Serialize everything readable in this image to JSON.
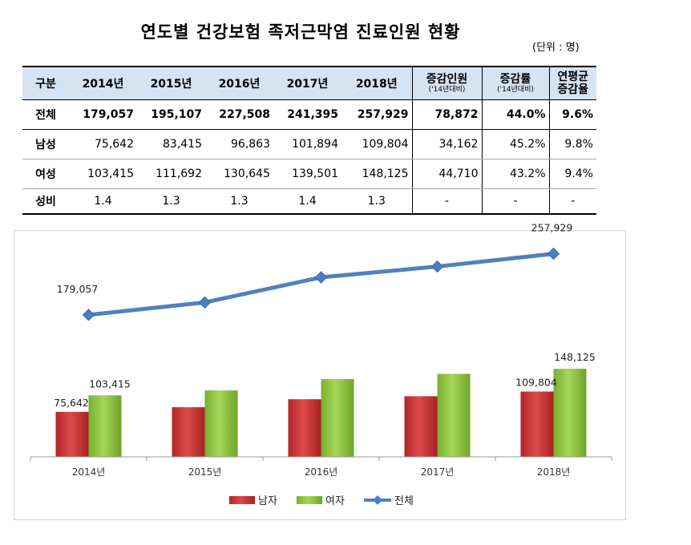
{
  "title": "연도별 건강보험 족저근막염 진료인원 현황",
  "unit": "(단위 : 명)",
  "table": {
    "headers": [
      "구분",
      "2014년",
      "2015년",
      "2016년",
      "2017년",
      "2018년"
    ],
    "extra_headers": [
      {
        "main": "증감인원",
        "sub": "('14년대비)"
      },
      {
        "main": "증감률",
        "sub": "('14년대비)"
      },
      {
        "main": "연평균",
        "sub": "증감율"
      }
    ],
    "rows": [
      {
        "label": "전체",
        "values": [
          "179,057",
          "195,107",
          "227,508",
          "241,395",
          "257,929",
          "78,872",
          "44.0%",
          "9.6%"
        ]
      },
      {
        "label": "남성",
        "values": [
          "75,642",
          "83,415",
          "96,863",
          "101,894",
          "109,804",
          "34,162",
          "45.2%",
          "9.8%"
        ]
      },
      {
        "label": "여성",
        "values": [
          "103,415",
          "111,692",
          "130,645",
          "139,501",
          "148,125",
          "44,710",
          "43.2%",
          "9.4%"
        ]
      },
      {
        "label": "성비",
        "values": [
          "1.4",
          "1.3",
          "1.3",
          "1.4",
          "1.3",
          "-",
          "-",
          "-"
        ]
      }
    ]
  },
  "chart_data": {
    "type": "bar",
    "categories": [
      "2014년",
      "2015년",
      "2016년",
      "2017년",
      "2018년"
    ],
    "series": [
      {
        "name": "남자",
        "type": "bar",
        "color": "#cc3333",
        "values": [
          75642,
          83415,
          96863,
          101894,
          109804
        ]
      },
      {
        "name": "여자",
        "type": "bar",
        "color": "#8cc43d",
        "values": [
          103415,
          111692,
          130645,
          139501,
          148125
        ]
      },
      {
        "name": "전체",
        "type": "line",
        "color": "#4f81bd",
        "values": [
          179057,
          195107,
          227508,
          241395,
          257929
        ]
      }
    ],
    "data_labels": [
      {
        "series": "전체",
        "index": 0,
        "text": "179,057"
      },
      {
        "series": "전체",
        "index": 4,
        "text": "257,929"
      },
      {
        "series": "남자",
        "index": 0,
        "text": "75,642"
      },
      {
        "series": "여자",
        "index": 0,
        "text": "103,415"
      },
      {
        "series": "남자",
        "index": 4,
        "text": "109,804"
      },
      {
        "series": "여자",
        "index": 4,
        "text": "148,125"
      }
    ],
    "legend_position": "bottom",
    "grid": false
  }
}
